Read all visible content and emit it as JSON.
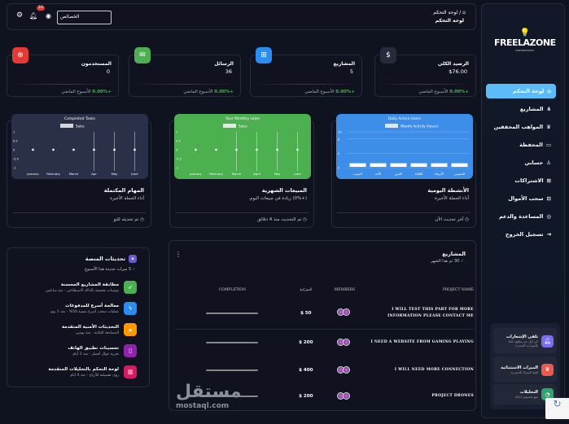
{
  "header": {
    "breadcrumb_home": "لوحة التحكم",
    "title": "لوحة التحكم",
    "search_value": "الخصائص",
    "notif_count": "10"
  },
  "sidebar": {
    "logo": "FREELAZONE",
    "logo_tag": "MAKE DREAMS REAL",
    "items": [
      {
        "label": "لوحة التحكم",
        "icon": "home-icon",
        "active": true
      },
      {
        "label": "المشاريع",
        "icon": "share-icon"
      },
      {
        "label": "المواهب المحققين",
        "icon": "crown-icon"
      },
      {
        "label": "المحفظة",
        "icon": "wallet-icon"
      },
      {
        "label": "حسابي",
        "icon": "user-icon"
      },
      {
        "label": "الاشتراكات",
        "icon": "gift-icon"
      },
      {
        "label": "سحب الأموال",
        "icon": "money-icon"
      },
      {
        "label": "المساعدة والدعم",
        "icon": "headset-icon"
      },
      {
        "label": "تسجيل الخروج",
        "icon": "logout-icon"
      }
    ],
    "promo": [
      {
        "title": "تلقي الإشعارات",
        "sub": "كن أول من يطلع دائمًا بالميزات الجديدة",
        "icon": "bell-icon",
        "color": "#7c6cf0"
      },
      {
        "title": "الميزات الاستثنائية",
        "sub": "افتح المزايا الحصرية",
        "icon": "crown-icon",
        "color": "#ec5a4a"
      },
      {
        "title": "التحليلات",
        "sub": "تتبع مستوى أدائك",
        "icon": "pie-icon",
        "color": "#2fa36b"
      }
    ]
  },
  "stats": [
    {
      "label": "الرصيد الكلي",
      "value": "$76.00",
      "change": "+0.00%",
      "period": "الأسبوع الماضي",
      "icon": "dollar-icon",
      "color": "#252b3b"
    },
    {
      "label": "المشاريع",
      "value": "5",
      "change": "+0.00%",
      "period": "الأسبوع الماضي",
      "icon": "sitemap-icon",
      "color": "#2a8df2"
    },
    {
      "label": "الرسائل",
      "value": "36",
      "change": "+0.00%",
      "period": "الأسبوع الماضي",
      "icon": "mail-icon",
      "color": "#4caf50"
    },
    {
      "label": "المستخدمون",
      "value": "0",
      "change": "+0.00%",
      "period": "الأسبوع الماضي",
      "icon": "user-plus-icon",
      "color": "#e53935"
    }
  ],
  "cards": [
    {
      "title": "الأنشطة اليومية",
      "sub": "أداء الحملة الأخيرة",
      "foot": "آخر تحديث الآن"
    },
    {
      "title": "المبيعات الشهرية",
      "sub": "(+0%) زيادة في مبيعات اليوم.",
      "foot": "تم التحديث منذ 4 دقائق"
    },
    {
      "title": "المهام المكتملة",
      "sub": "أداء الحملة الأخيرة",
      "foot": "تم تحديثه للتو"
    }
  ],
  "chart_data": [
    {
      "type": "bar",
      "title": "Daily Active Users",
      "legend": "Weekly Activity (hours)",
      "categories": [
        "السبت",
        "الأحد",
        "الاثنين",
        "الثلاثاء",
        "الأربعاء",
        "الخميس"
      ],
      "values": [
        1,
        1,
        1,
        1,
        1,
        1
      ],
      "ylim": [
        0,
        10
      ],
      "yticks": [
        0,
        4,
        8,
        10
      ],
      "bg": "#3d8ee8"
    },
    {
      "type": "line",
      "title": "Your Monthly sales",
      "legend": "Sales",
      "categories": [
        "January",
        "February",
        "March",
        "April",
        "May",
        "June"
      ],
      "values": [
        0,
        0,
        0,
        0,
        0,
        0
      ],
      "ylim": [
        -1,
        1
      ],
      "yticks": [
        -1.0,
        -0.5,
        0,
        0.5,
        1.0
      ],
      "bg": "#4caf50"
    },
    {
      "type": "line",
      "title": "Completed Tasks",
      "legend": "Sales",
      "categories": [
        "January",
        "February",
        "March",
        "Apr",
        "May",
        "June"
      ],
      "values": [
        0,
        0,
        0,
        0,
        0,
        0
      ],
      "ylim": [
        -1,
        1
      ],
      "yticks": [
        -1.0,
        -0.5,
        0,
        0.5,
        1.0
      ],
      "bg": "#2a3048"
    }
  ],
  "updates": {
    "title": "تحديثات المنصة",
    "sub": "5 ميزات جديدة هذا الأسبوع",
    "items": [
      {
        "title": "مطابقة المشاريع المحسنة",
        "sub": "توصيات محسنة بالذكاء الاصطناعي - منذ ساعتين",
        "icon": "rocket-icon",
        "color": "#4caf50"
      },
      {
        "title": "معالجة أسرع للمدفوعات",
        "sub": "عمليات سحب أسرع بنسبة 50% - منذ 1 يوم",
        "icon": "bolt-icon",
        "color": "#2a8df2"
      },
      {
        "title": "التحديثات الأمنية المتقدمة",
        "sub": "المصادقة الثنائية - منذ يومين",
        "icon": "lock-icon",
        "color": "#ff9800"
      },
      {
        "title": "تحسينات تطبيق الهاتف",
        "sub": "تجربة جوال أفضل - منذ 3 أيام",
        "icon": "phone-icon",
        "color": "#8e24aa"
      },
      {
        "title": "لوحة التحكم بالتحليلات المتقدمة",
        "sub": "رؤى تفصيلية للأرباح - منذ 4 أيام",
        "icon": "chart-icon",
        "color": "#d81b60"
      }
    ]
  },
  "projects": {
    "title": "المشاريع",
    "sub": "30 تم هذا الشهر",
    "columns": [
      "PROJECT NAME",
      "MEMBERS",
      "الميزانية",
      "COMPLETION"
    ],
    "rows": [
      {
        "name": "I WILL TEST THIS PART FOR MORE INFORMATION PLEASE CONTACT ME",
        "budget": "$ 50",
        "completion": 0
      },
      {
        "name": "I NEED A WEBSITE FROM GAMING PLAYING",
        "budget": "$ 200",
        "completion": 0
      },
      {
        "name": "I WILL NEED MORE CONNECTION",
        "budget": "$ 400",
        "completion": 0
      },
      {
        "name": "PROJECT DRONES",
        "budget": "$ 200",
        "completion": 0
      }
    ]
  }
}
